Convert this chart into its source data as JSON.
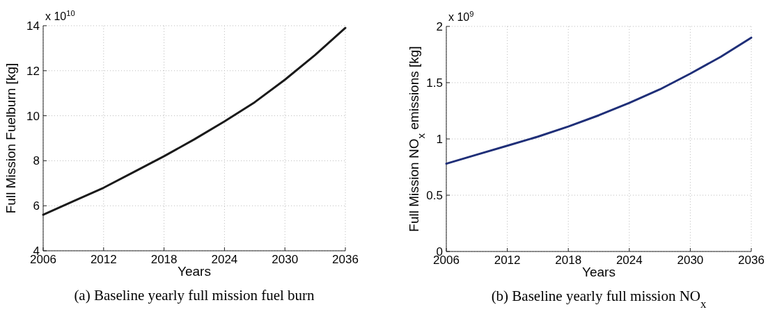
{
  "chart_data": [
    {
      "type": "line",
      "title": "(a) Baseline yearly full mission fuel burn",
      "xlabel": "Years",
      "ylabel": "Full Mission Fuelburn [kg]",
      "annotations": [
        "x 10$^{10}$"
      ],
      "x": [
        2006,
        2009,
        2012,
        2015,
        2018,
        2021,
        2024,
        2027,
        2030,
        2033,
        2036
      ],
      "series": [
        {
          "color": "#1a1a1a",
          "values": [
            5.6,
            6.2,
            6.8,
            7.5,
            8.2,
            8.95,
            9.75,
            10.6,
            11.6,
            12.7,
            13.9
          ]
        }
      ],
      "xlim": [
        2006,
        2036
      ],
      "xticks": [
        2006,
        2012,
        2018,
        2024,
        2030,
        2036
      ],
      "ylim": [
        4,
        14
      ],
      "yticks": [
        4,
        6,
        8,
        10,
        12,
        14
      ],
      "grid": true,
      "line_style": "solid"
    },
    {
      "type": "line",
      "title": "(b) Baseline yearly full mission NO$_{x}$",
      "xlabel": "Years",
      "ylabel": "Full Mission NO$_{x}$ emissions [kg]",
      "annotations": [
        "x 10$^{9}$"
      ],
      "x": [
        2006,
        2009,
        2012,
        2015,
        2018,
        2021,
        2024,
        2027,
        2030,
        2033,
        2036
      ],
      "series": [
        {
          "color": "#1f2f78",
          "values": [
            0.78,
            0.86,
            0.94,
            1.02,
            1.11,
            1.21,
            1.32,
            1.44,
            1.58,
            1.73,
            1.9
          ]
        }
      ],
      "xlim": [
        2006,
        2036
      ],
      "xticks": [
        2006,
        2012,
        2018,
        2024,
        2030,
        2036
      ],
      "ylim": [
        0,
        2
      ],
      "yticks": [
        0,
        0.5,
        1,
        1.5,
        2
      ],
      "grid": true,
      "line_style": "solid"
    }
  ]
}
